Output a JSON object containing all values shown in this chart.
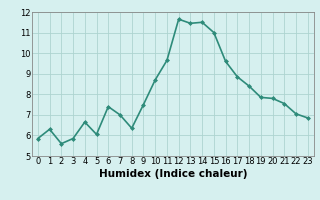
{
  "x": [
    0,
    1,
    2,
    3,
    4,
    5,
    6,
    7,
    8,
    9,
    10,
    11,
    12,
    13,
    14,
    15,
    16,
    17,
    18,
    19,
    20,
    21,
    22,
    23
  ],
  "y": [
    5.85,
    6.3,
    5.6,
    5.85,
    6.65,
    6.05,
    7.4,
    7.0,
    6.35,
    7.5,
    8.7,
    9.65,
    11.65,
    11.45,
    11.5,
    11.0,
    9.6,
    8.85,
    8.4,
    7.85,
    7.8,
    7.55,
    7.05,
    6.85
  ],
  "line_color": "#2e8b7a",
  "marker": "D",
  "marker_size": 2,
  "bg_color": "#d6f0ef",
  "grid_color": "#aed4d0",
  "xlabel": "Humidex (Indice chaleur)",
  "xlim": [
    -0.5,
    23.5
  ],
  "ylim": [
    5,
    12
  ],
  "yticks": [
    5,
    6,
    7,
    8,
    9,
    10,
    11,
    12
  ],
  "xticks": [
    0,
    1,
    2,
    3,
    4,
    5,
    6,
    7,
    8,
    9,
    10,
    11,
    12,
    13,
    14,
    15,
    16,
    17,
    18,
    19,
    20,
    21,
    22,
    23
  ],
  "tick_fontsize": 6,
  "label_fontsize": 7.5,
  "line_width": 1.2
}
